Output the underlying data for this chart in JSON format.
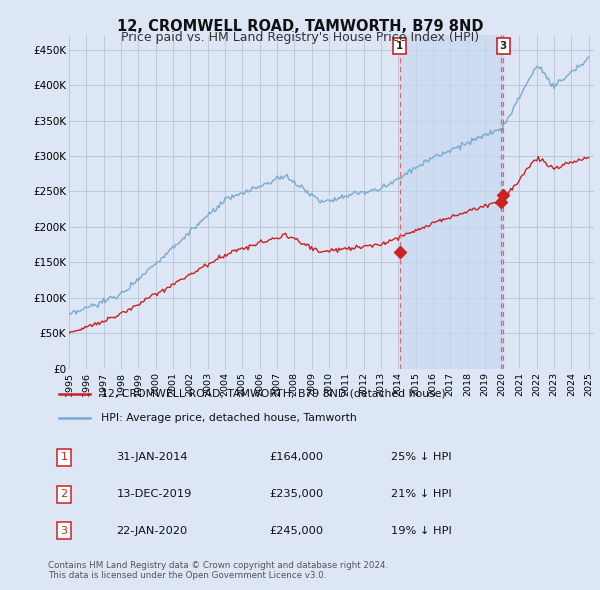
{
  "title": "12, CROMWELL ROAD, TAMWORTH, B79 8ND",
  "subtitle": "Price paid vs. HM Land Registry's House Price Index (HPI)",
  "title_fontsize": 10.5,
  "subtitle_fontsize": 9,
  "ylim": [
    0,
    470000
  ],
  "yticks": [
    0,
    50000,
    100000,
    150000,
    200000,
    250000,
    300000,
    350000,
    400000,
    450000
  ],
  "ytick_labels": [
    "£0",
    "£50K",
    "£100K",
    "£150K",
    "£200K",
    "£250K",
    "£300K",
    "£350K",
    "£400K",
    "£450K"
  ],
  "bg_color": "#dce6f5",
  "plot_bg_color": "#dce6f5",
  "grid_color": "#b0bcd0",
  "hpi_color": "#7aaad0",
  "price_color": "#cc2222",
  "dashed_line_color": "#dd6666",
  "shade_color": "#c8d8f0",
  "transactions": [
    {
      "label": "1",
      "date_num": 2014.08,
      "price": 164000,
      "show_top_label": true
    },
    {
      "label": "2",
      "date_num": 2019.96,
      "price": 235000,
      "show_top_label": false
    },
    {
      "label": "3",
      "date_num": 2020.06,
      "price": 245000,
      "show_top_label": true
    }
  ],
  "legend_label_price": "12, CROMWELL ROAD, TAMWORTH, B79 8ND (detached house)",
  "legend_label_hpi": "HPI: Average price, detached house, Tamworth",
  "table_data": [
    [
      "1",
      "31-JAN-2014",
      "£164,000",
      "25% ↓ HPI"
    ],
    [
      "2",
      "13-DEC-2019",
      "£235,000",
      "21% ↓ HPI"
    ],
    [
      "3",
      "22-JAN-2020",
      "£245,000",
      "19% ↓ HPI"
    ]
  ],
  "footer1": "Contains HM Land Registry data © Crown copyright and database right 2024.",
  "footer2": "This data is licensed under the Open Government Licence v3.0."
}
